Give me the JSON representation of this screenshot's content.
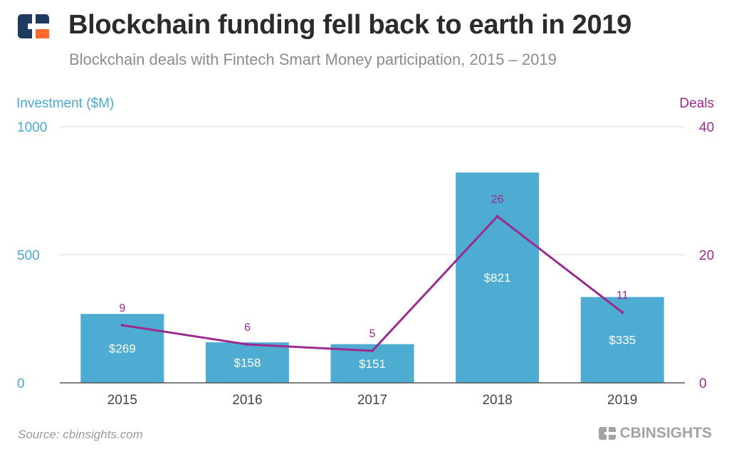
{
  "header": {
    "title": "Blockchain funding fell back to earth in 2019",
    "subtitle": "Blockchain deals with Fintech Smart Money participation, 2015 – 2019"
  },
  "footer": {
    "source": "Source: cbinsights.com",
    "brand": "CBINSIGHTS"
  },
  "colors": {
    "bar": "#4eabd1",
    "line": "#9b2b8e",
    "left_axis": "#4aa8cf",
    "grid": "#d9d9d9",
    "logo_navy": "#1f3a60",
    "logo_orange": "#ff6a2c"
  },
  "chart_data": {
    "type": "bar",
    "title": "Blockchain funding fell back to earth in 2019",
    "categories": [
      "2015",
      "2016",
      "2017",
      "2018",
      "2019"
    ],
    "series": [
      {
        "name": "Investment ($M)",
        "type": "bar",
        "axis": "left",
        "values": [
          269,
          158,
          151,
          821,
          335
        ],
        "labels": [
          "$269",
          "$158",
          "$151",
          "$821",
          "$335"
        ]
      },
      {
        "name": "Deals",
        "type": "line",
        "axis": "right",
        "values": [
          9,
          6,
          5,
          26,
          11
        ],
        "labels": [
          "9",
          "6",
          "5",
          "26",
          "11"
        ]
      }
    ],
    "ylabel_left": "Investment ($M)",
    "ylabel_right": "Deals",
    "ylim_left": [
      0,
      1000
    ],
    "ylim_right": [
      0,
      40
    ],
    "yticks_left": [
      "0",
      "500",
      "1000"
    ],
    "yticks_right": [
      "0",
      "20",
      "40"
    ],
    "grid": true
  }
}
